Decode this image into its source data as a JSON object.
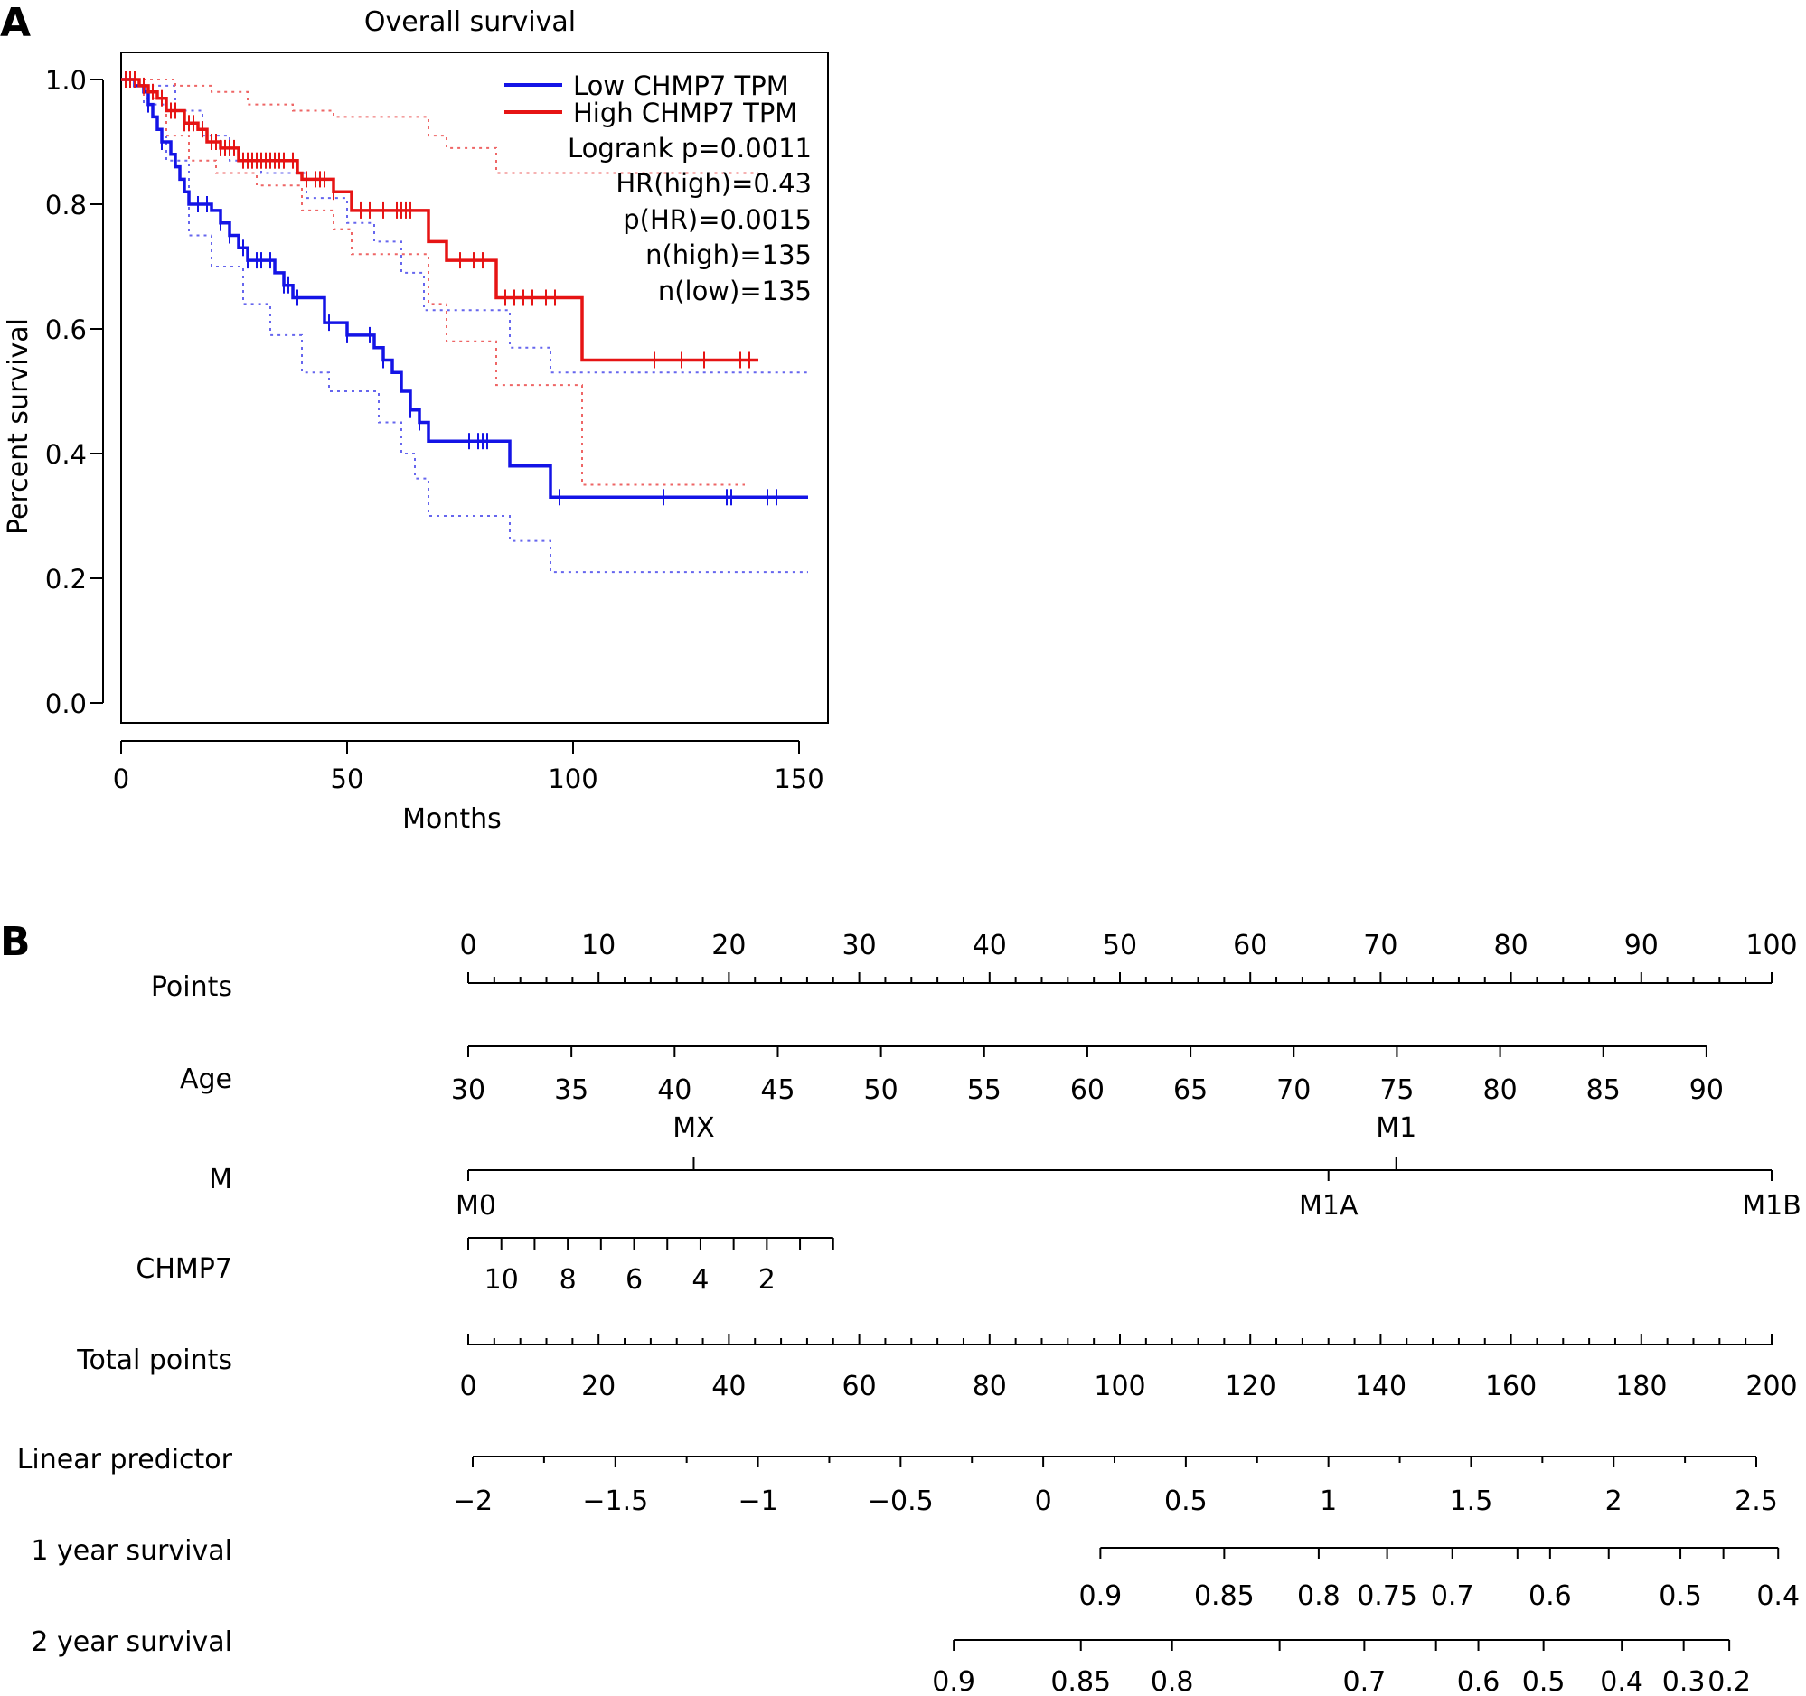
{
  "panel_a": {
    "letter": "A",
    "chart_data": {
      "type": "line",
      "subtype": "kaplan-meier",
      "title": "Overall survival",
      "xlabel": "Months",
      "ylabel": "Percent survival",
      "xlim": [
        0,
        155
      ],
      "ylim": [
        0,
        1.05
      ],
      "x_ticks": [
        0,
        50,
        100,
        150
      ],
      "x_tick_labels": [
        "0",
        "50",
        "100",
        "150"
      ],
      "y_ticks": [
        0,
        0.2,
        0.4,
        0.6,
        0.8,
        1.0
      ],
      "y_tick_labels": [
        "0.0",
        "0.2",
        "0.4",
        "0.6",
        "0.8",
        "1.0"
      ],
      "legend_position": "top-right",
      "legend": [
        "Low CHMP7 TPM",
        "High CHMP7 TPM"
      ],
      "stats": [
        "Logrank p=0.0011",
        "HR(high)=0.43",
        "p(HR)=0.0015",
        "n(high)=135",
        "n(low)=135"
      ],
      "series": [
        {
          "name": "Low CHMP7 TPM",
          "color": "#1414e6",
          "steps": [
            [
              0,
              1.0
            ],
            [
              3,
              0.99
            ],
            [
              5,
              0.98
            ],
            [
              6,
              0.96
            ],
            [
              7,
              0.94
            ],
            [
              8,
              0.92
            ],
            [
              9,
              0.9
            ],
            [
              11,
              0.88
            ],
            [
              12,
              0.86
            ],
            [
              13,
              0.84
            ],
            [
              14,
              0.82
            ],
            [
              15,
              0.8
            ],
            [
              20,
              0.79
            ],
            [
              22,
              0.77
            ],
            [
              24,
              0.75
            ],
            [
              26,
              0.73
            ],
            [
              28,
              0.71
            ],
            [
              34,
              0.69
            ],
            [
              36,
              0.67
            ],
            [
              38,
              0.65
            ],
            [
              45,
              0.61
            ],
            [
              50,
              0.59
            ],
            [
              56,
              0.57
            ],
            [
              58,
              0.55
            ],
            [
              60,
              0.53
            ],
            [
              62,
              0.5
            ],
            [
              64,
              0.47
            ],
            [
              66,
              0.45
            ],
            [
              68,
              0.42
            ],
            [
              86,
              0.38
            ],
            [
              95,
              0.33
            ],
            [
              152,
              0.33
            ]
          ],
          "censor": [
            6,
            9,
            17,
            19,
            22,
            24,
            27,
            28,
            30,
            31,
            33,
            36,
            37,
            39,
            46,
            50,
            55,
            58,
            64,
            66,
            77,
            79,
            80,
            81,
            97,
            120,
            134,
            135,
            143,
            145
          ]
        },
        {
          "name": "High CHMP7 TPM",
          "color": "#e61414",
          "steps": [
            [
              0,
              1.0
            ],
            [
              4,
              0.99
            ],
            [
              6,
              0.98
            ],
            [
              8,
              0.97
            ],
            [
              10,
              0.95
            ],
            [
              14,
              0.93
            ],
            [
              17,
              0.92
            ],
            [
              19,
              0.9
            ],
            [
              22,
              0.89
            ],
            [
              26,
              0.87
            ],
            [
              39,
              0.85
            ],
            [
              40,
              0.84
            ],
            [
              47,
              0.82
            ],
            [
              51,
              0.79
            ],
            [
              68,
              0.74
            ],
            [
              72,
              0.71
            ],
            [
              83,
              0.65
            ],
            [
              102,
              0.55
            ],
            [
              141,
              0.55
            ]
          ],
          "censor": [
            1,
            2,
            3,
            5,
            7,
            9,
            11,
            12,
            14,
            15,
            16,
            18,
            20,
            21,
            22,
            23,
            24,
            25,
            27,
            28,
            29,
            30,
            31,
            32,
            33,
            34,
            35,
            36,
            38,
            41,
            43,
            44,
            45,
            47,
            53,
            55,
            58,
            61,
            62,
            63,
            64,
            75,
            78,
            80,
            85,
            87,
            89,
            91,
            94,
            96,
            118,
            124,
            129,
            137,
            139
          ]
        }
      ],
      "confidence_bands": [
        {
          "series": "Low CHMP7 TPM",
          "color": "#6666ee",
          "upper": [
            [
              0,
              1.0
            ],
            [
              7,
              0.99
            ],
            [
              12,
              0.95
            ],
            [
              18,
              0.91
            ],
            [
              24,
              0.87
            ],
            [
              31,
              0.85
            ],
            [
              41,
              0.81
            ],
            [
              50,
              0.77
            ],
            [
              56,
              0.74
            ],
            [
              62,
              0.69
            ],
            [
              67,
              0.63
            ],
            [
              86,
              0.57
            ],
            [
              95,
              0.53
            ],
            [
              152,
              0.53
            ]
          ],
          "lower": [
            [
              0,
              1.0
            ],
            [
              5,
              0.96
            ],
            [
              10,
              0.87
            ],
            [
              15,
              0.75
            ],
            [
              20,
              0.7
            ],
            [
              27,
              0.64
            ],
            [
              33,
              0.59
            ],
            [
              40,
              0.53
            ],
            [
              46,
              0.5
            ],
            [
              57,
              0.45
            ],
            [
              62,
              0.4
            ],
            [
              65,
              0.36
            ],
            [
              68,
              0.3
            ],
            [
              86,
              0.26
            ],
            [
              95,
              0.21
            ],
            [
              152,
              0.21
            ]
          ]
        },
        {
          "series": "High CHMP7 TPM",
          "color": "#ee6666",
          "upper": [
            [
              0,
              1.0
            ],
            [
              8,
              1.0
            ],
            [
              12,
              0.99
            ],
            [
              20,
              0.98
            ],
            [
              28,
              0.96
            ],
            [
              38,
              0.95
            ],
            [
              47,
              0.94
            ],
            [
              68,
              0.91
            ],
            [
              72,
              0.89
            ],
            [
              83,
              0.85
            ],
            [
              102,
              0.85
            ],
            [
              141,
              0.85
            ]
          ],
          "lower": [
            [
              0,
              1.0
            ],
            [
              5,
              0.97
            ],
            [
              10,
              0.91
            ],
            [
              15,
              0.87
            ],
            [
              21,
              0.85
            ],
            [
              30,
              0.83
            ],
            [
              40,
              0.79
            ],
            [
              47,
              0.76
            ],
            [
              51,
              0.72
            ],
            [
              68,
              0.64
            ],
            [
              72,
              0.58
            ],
            [
              83,
              0.51
            ],
            [
              102,
              0.35
            ],
            [
              138,
              0.35
            ]
          ]
        }
      ]
    }
  },
  "panel_b": {
    "letter": "B",
    "chart_data": {
      "type": "nomogram",
      "axes": [
        {
          "label": "Points",
          "ticks": [
            0,
            10,
            20,
            30,
            40,
            50,
            60,
            70,
            80,
            90,
            100
          ],
          "tick_labels": [
            "0",
            "10",
            "20",
            "30",
            "40",
            "50",
            "60",
            "70",
            "80",
            "90",
            "100"
          ],
          "minor_step": 2,
          "points_range": [
            0,
            100
          ],
          "labels_side": "above"
        },
        {
          "label": "Age",
          "ticks": [
            30,
            35,
            40,
            45,
            50,
            55,
            60,
            65,
            70,
            75,
            80,
            85,
            90
          ],
          "tick_labels": [
            "30",
            "35",
            "40",
            "45",
            "50",
            "55",
            "60",
            "65",
            "70",
            "75",
            "80",
            "85",
            "90"
          ],
          "points_range": [
            0,
            95
          ],
          "labels_side": "below"
        },
        {
          "label": "M",
          "categories": [
            {
              "name": "M0",
              "points": 0,
              "side": "below"
            },
            {
              "name": "MX",
              "points": 17.3,
              "side": "above"
            },
            {
              "name": "M1A",
              "points": 66,
              "side": "below"
            },
            {
              "name": "M1",
              "points": 71.2,
              "side": "above"
            },
            {
              "name": "M1B",
              "points": 100,
              "side": "below"
            }
          ]
        },
        {
          "label": "CHMP7",
          "ticks": [
            11,
            10,
            9,
            8,
            7,
            6,
            5,
            4,
            3,
            2,
            1,
            0
          ],
          "tick_labels": [
            "",
            "10",
            "",
            "8",
            "",
            "6",
            "",
            "4",
            "",
            "2",
            "",
            ""
          ],
          "values_range": [
            11,
            0
          ],
          "points_range": [
            0,
            28
          ],
          "labels_side": "below"
        },
        {
          "label": "Total points",
          "ticks": [
            0,
            20,
            40,
            60,
            80,
            100,
            120,
            140,
            160,
            180,
            200
          ],
          "tick_labels": [
            "0",
            "20",
            "40",
            "60",
            "80",
            "100",
            "120",
            "140",
            "160",
            "180",
            "200"
          ],
          "minor_step": 4,
          "range": [
            0,
            200
          ],
          "labels_side": "below"
        },
        {
          "label": "Linear predictor",
          "ticks": [
            -2,
            -1.5,
            -1,
            -0.5,
            0,
            0.5,
            1,
            1.5,
            2,
            2.5
          ],
          "tick_labels": [
            "−2",
            "−1.5",
            "−1",
            "−0.5",
            "0",
            "0.5",
            "1",
            "1.5",
            "2",
            "2.5"
          ],
          "minor_step": 0.25,
          "labels_side": "below"
        },
        {
          "label": "1 year survival",
          "ticks": [
            0.9,
            0.85,
            0.8,
            0.75,
            0.7,
            0.65,
            0.6,
            0.55,
            0.5,
            0.45,
            0.4
          ],
          "tick_labels": [
            "0.9",
            "0.85",
            "0.8",
            "0.75",
            "0.7",
            "",
            "0.6",
            "",
            "0.5",
            "",
            "0.4"
          ],
          "total_points": [
            97,
            116,
            130.5,
            141,
            151,
            161,
            166,
            175,
            186,
            192.6,
            201
          ],
          "labels_side": "below"
        },
        {
          "label": "2 year survival",
          "ticks": [
            0.9,
            0.85,
            0.8,
            0.75,
            0.7,
            0.65,
            0.6,
            0.5,
            0.4,
            0.3,
            0.2
          ],
          "tick_labels": [
            "0.9",
            "0.85",
            "0.8",
            "",
            "0.7",
            "",
            "0.6",
            "0.5",
            "0.4",
            "0.3",
            "0.2"
          ],
          "total_points": [
            74.5,
            94,
            108,
            124.5,
            137.5,
            148.5,
            155,
            165,
            177,
            186.5,
            193.5
          ],
          "labels_side": "below"
        }
      ]
    }
  }
}
